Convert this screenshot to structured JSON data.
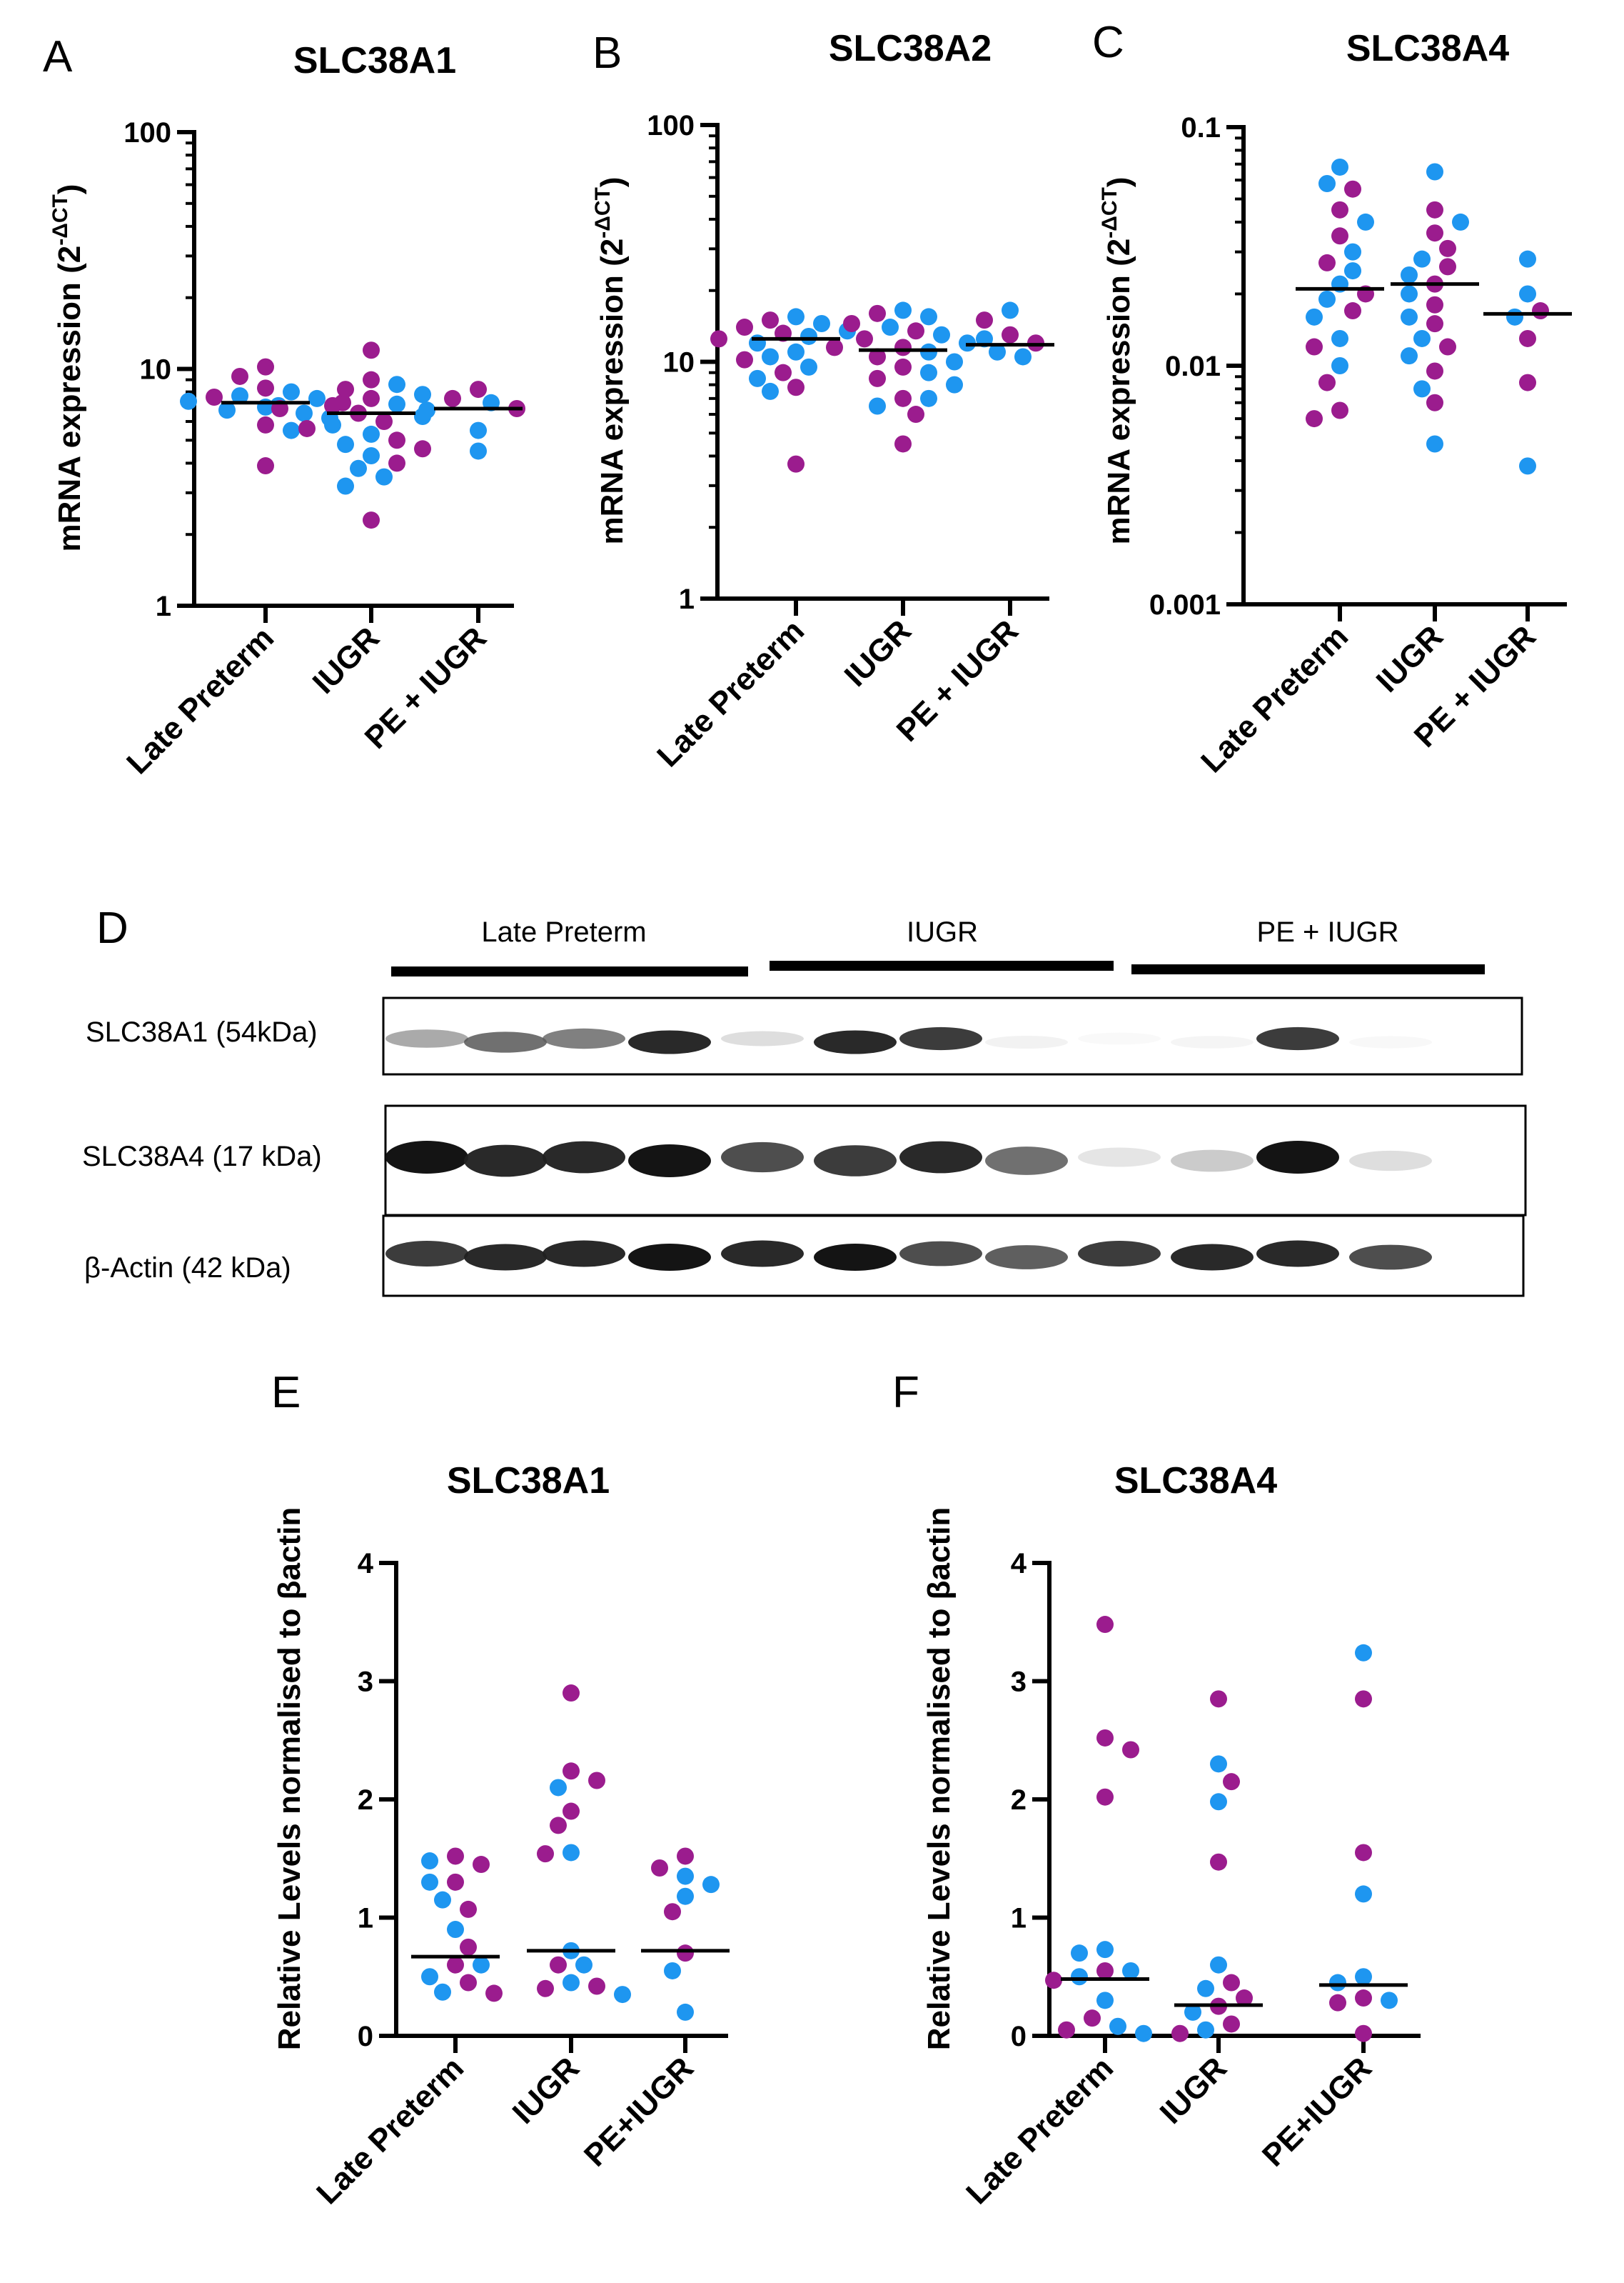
{
  "colors": {
    "purple": "#9b1c8e",
    "blue": "#1e96f0",
    "median": "#000000"
  },
  "chart_data": [
    {
      "panel": "A",
      "title": "SLC38A1",
      "type": "scatter",
      "scale": "log",
      "ylabel": "mRNA expression (2",
      "ylabel_sup": "-ΔCT",
      "ylabel_close": ")",
      "ylim": [
        1,
        100
      ],
      "yticks": [
        "1",
        "10",
        "100"
      ],
      "yticks_val": [
        1,
        10,
        100
      ],
      "categories": [
        "Late Preterm",
        "IUGR",
        "PE + IUGR"
      ],
      "medians": [
        7.2,
        6.5,
        6.8
      ],
      "groups": [
        {
          "purple": [
            10.2,
            9.3,
            8.3,
            7.6,
            7.2,
            6.8,
            5.8,
            3.9
          ],
          "blue": [
            8.0,
            7.7,
            7.5,
            7.3,
            7.0,
            6.9,
            6.7,
            6.5,
            6.2,
            5.5
          ]
        },
        {
          "purple": [
            12.0,
            9.0,
            8.2,
            7.5,
            7.0,
            6.5,
            6.0,
            5.6,
            5.0,
            4.6,
            4.0,
            2.3
          ],
          "blue": [
            8.6,
            7.8,
            7.1,
            6.3,
            5.8,
            5.3,
            4.8,
            4.3,
            3.8,
            3.5,
            3.2
          ]
        },
        {
          "purple": [
            8.2,
            7.5,
            6.8
          ],
          "blue": [
            7.2,
            6.7,
            5.5,
            4.5
          ]
        }
      ]
    },
    {
      "panel": "B",
      "title": "SLC38A2",
      "type": "scatter",
      "scale": "log",
      "ylabel": "mRNA expression (2",
      "ylabel_sup": "-ΔCT",
      "ylabel_close": ")",
      "ylim": [
        1,
        100
      ],
      "yticks": [
        "1",
        "10",
        "100"
      ],
      "yticks_val": [
        1,
        10,
        100
      ],
      "categories": [
        "Late Preterm",
        "IUGR",
        "PE + IUGR"
      ],
      "medians": [
        12.5,
        11.2,
        11.8
      ],
      "groups": [
        {
          "purple": [
            15.0,
            14.0,
            13.2,
            12.5,
            11.5,
            10.2,
            9.0,
            7.8,
            3.7
          ],
          "blue": [
            15.5,
            14.5,
            13.5,
            12.8,
            12.0,
            11.0,
            10.5,
            9.5,
            8.5,
            7.5
          ]
        },
        {
          "purple": [
            16.0,
            14.5,
            13.5,
            12.5,
            11.5,
            10.5,
            9.5,
            8.5,
            7.0,
            6.0,
            4.5
          ],
          "blue": [
            16.5,
            15.5,
            14.0,
            13.0,
            12.0,
            11.0,
            10.0,
            9.0,
            8.0,
            7.0,
            6.5
          ]
        },
        {
          "purple": [
            15.0,
            13.0,
            12.0
          ],
          "blue": [
            16.5,
            12.5,
            11.0,
            10.5
          ]
        }
      ]
    },
    {
      "panel": "C",
      "title": "SLC38A4",
      "type": "scatter",
      "scale": "log",
      "ylabel": "mRNA expression (2",
      "ylabel_sup": "-ΔCT",
      "ylabel_close": ")",
      "ylim": [
        0.001,
        0.1
      ],
      "yticks": [
        "0.001",
        "0.01",
        "0.1"
      ],
      "yticks_val": [
        0.001,
        0.01,
        0.1
      ],
      "categories": [
        "Late Preterm",
        "IUGR",
        "PE + IUGR"
      ],
      "medians": [
        0.021,
        0.022,
        0.0165
      ],
      "groups": [
        {
          "purple": [
            0.055,
            0.045,
            0.035,
            0.027,
            0.02,
            0.017,
            0.012,
            0.0085,
            0.0065,
            0.006
          ],
          "blue": [
            0.068,
            0.058,
            0.04,
            0.03,
            0.025,
            0.022,
            0.019,
            0.016,
            0.013,
            0.01
          ]
        },
        {
          "purple": [
            0.045,
            0.036,
            0.031,
            0.026,
            0.022,
            0.018,
            0.015,
            0.012,
            0.0095,
            0.007
          ],
          "blue": [
            0.065,
            0.04,
            0.028,
            0.024,
            0.02,
            0.016,
            0.013,
            0.011,
            0.008,
            0.0047
          ]
        },
        {
          "purple": [
            0.017,
            0.013,
            0.0085
          ],
          "blue": [
            0.028,
            0.02,
            0.016,
            0.0038
          ]
        }
      ]
    },
    {
      "panel": "E",
      "title": "SLC38A1",
      "type": "scatter",
      "scale": "linear",
      "ylabel": "Relative Levels normalised to βactin",
      "ylim": [
        0,
        4
      ],
      "yticks": [
        "0",
        "1",
        "2",
        "3",
        "4"
      ],
      "yticks_val": [
        0,
        1,
        2,
        3,
        4
      ],
      "categories": [
        "Late Preterm",
        "IUGR",
        "PE+IUGR"
      ],
      "medians": [
        0.67,
        0.72,
        0.72
      ],
      "groups": [
        {
          "purple": [
            1.52,
            1.45,
            1.3,
            1.07,
            0.75,
            0.6,
            0.45,
            0.36
          ],
          "blue": [
            1.48,
            1.3,
            1.15,
            0.9,
            0.6,
            0.5,
            0.37
          ]
        },
        {
          "purple": [
            2.9,
            2.24,
            2.16,
            1.9,
            1.78,
            1.54,
            0.6,
            0.42,
            0.4
          ],
          "blue": [
            2.1,
            1.55,
            0.72,
            0.6,
            0.45,
            0.35
          ]
        },
        {
          "purple": [
            1.52,
            1.42,
            1.05,
            0.7
          ],
          "blue": [
            1.35,
            1.28,
            1.18,
            0.55,
            0.2
          ]
        }
      ]
    },
    {
      "panel": "F",
      "title": "SLC38A4",
      "type": "scatter",
      "scale": "linear",
      "ylabel": "Relative Levels normalised to βactin",
      "ylim": [
        0,
        4
      ],
      "yticks": [
        "0",
        "1",
        "2",
        "3",
        "4"
      ],
      "yticks_val": [
        0,
        1,
        2,
        3,
        4
      ],
      "categories": [
        "Late Preterm",
        "IUGR",
        "PE+IUGR"
      ],
      "medians": [
        0.48,
        0.26,
        0.43
      ],
      "groups": [
        {
          "purple": [
            3.48,
            2.52,
            2.42,
            2.02,
            0.55,
            0.47,
            0.15,
            0.05
          ],
          "blue": [
            0.73,
            0.7,
            0.55,
            0.5,
            0.3,
            0.08,
            0.02
          ]
        },
        {
          "purple": [
            2.85,
            2.15,
            1.47,
            0.45,
            0.32,
            0.25,
            0.1,
            0.02
          ],
          "blue": [
            2.3,
            1.98,
            0.6,
            0.4,
            0.2,
            0.05
          ]
        },
        {
          "purple": [
            2.85,
            1.55,
            0.32,
            0.28,
            0.02
          ],
          "blue": [
            3.24,
            1.2,
            0.5,
            0.45,
            0.3
          ]
        }
      ]
    }
  ],
  "western_blot": {
    "panel": "D",
    "groups": [
      "Late Preterm",
      "IUGR",
      "PE + IUGR"
    ],
    "rows": [
      {
        "label": "SLC38A1 (54kDa)",
        "lanes": [
          0.55,
          0.75,
          0.7,
          0.95,
          0.3,
          0.95,
          0.9,
          0.15,
          0.08,
          0.12,
          0.9,
          0.1
        ]
      },
      {
        "label": "SLC38A4 (17 kDa)",
        "lanes": [
          1.0,
          0.95,
          0.95,
          1.0,
          0.85,
          0.9,
          0.95,
          0.75,
          0.25,
          0.4,
          1.0,
          0.3
        ]
      },
      {
        "label": "β-Actin (42 kDa)",
        "lanes": [
          0.9,
          0.95,
          0.95,
          1.0,
          0.95,
          1.0,
          0.85,
          0.8,
          0.9,
          0.95,
          0.95,
          0.85
        ]
      }
    ]
  }
}
